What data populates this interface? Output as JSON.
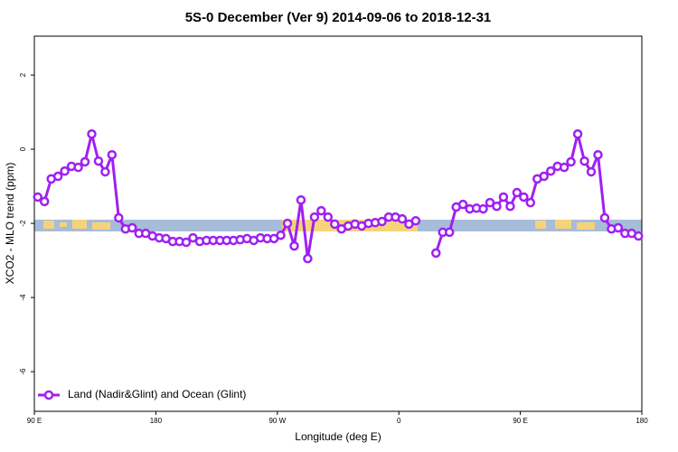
{
  "chart_data": {
    "type": "line",
    "title": "5S-0 December (Ver 9)   2014-09-06 to 2018-12-31",
    "x_label": "Longitude (deg E)",
    "y_label": "XCO2 - MLO trend (ppm)",
    "xlim": [
      90,
      540
    ],
    "ylim": [
      -7.07,
      3.05
    ],
    "xticks": [
      {
        "value": 90,
        "label": "90 E"
      },
      {
        "value": 180,
        "label": "180"
      },
      {
        "value": 270,
        "label": "90 W"
      },
      {
        "value": 360,
        "label": "0"
      },
      {
        "value": 450,
        "label": "90 E"
      },
      {
        "value": 540,
        "label": "180"
      }
    ],
    "yticks": [
      2,
      0,
      -2,
      -4,
      -6
    ],
    "legend": "bottom-left",
    "x": [
      92.5,
      97.5,
      102.5,
      107.5,
      112.5,
      117.5,
      122.5,
      127.5,
      132.5,
      137.5,
      142.5,
      147.5,
      152.5,
      157.5,
      162.5,
      167.5,
      172.5,
      177.5,
      182.5,
      187.5,
      192.5,
      197.5,
      202.5,
      207.5,
      212.5,
      217.5,
      222.5,
      227.5,
      232.5,
      237.5,
      242.5,
      247.5,
      252.5,
      257.5,
      262.5,
      267.5,
      272.5,
      277.5,
      282.5,
      287.5,
      292.5,
      297.5,
      302.5,
      307.5,
      312.5,
      317.5,
      322.5,
      327.5,
      332.5,
      337.5,
      342.5,
      347.5,
      352.5,
      357.5,
      362.5,
      367.5,
      372.5,
      377.5,
      382.5,
      387.5,
      392.5,
      397.5,
      402.5,
      407.5,
      412.5,
      417.5,
      422.5,
      427.5,
      432.5,
      437.5,
      442.5,
      447.5,
      452.5,
      457.5,
      462.5,
      467.5,
      472.5,
      477.5,
      482.5,
      487.5,
      492.5,
      497.5,
      502.5,
      507.5,
      512.5,
      517.5,
      522.5,
      527.5,
      532.5,
      537.5
    ],
    "series": [
      {
        "name": "Land (Nadir&Glint) and Ocean (Glint)",
        "color": "#a020f0",
        "values": [
          -1.29,
          -1.41,
          -0.8,
          -0.73,
          -0.59,
          -0.46,
          -0.49,
          -0.34,
          0.41,
          -0.32,
          -0.61,
          -0.15,
          -1.85,
          -2.15,
          -2.12,
          -2.27,
          -2.27,
          -2.34,
          -2.39,
          -2.41,
          -2.49,
          -2.49,
          -2.51,
          -2.39,
          -2.49,
          -2.46,
          -2.46,
          -2.46,
          -2.46,
          -2.46,
          -2.44,
          -2.41,
          -2.46,
          -2.39,
          -2.41,
          -2.41,
          -2.32,
          -2.0,
          -2.61,
          -1.37,
          -2.95,
          -1.83,
          -1.66,
          -1.83,
          -2.02,
          -2.15,
          -2.07,
          -2.02,
          -2.07,
          -2.0,
          -1.98,
          -1.95,
          -1.83,
          -1.83,
          -1.88,
          -2.02,
          -1.93,
          null,
          null,
          -2.8,
          -2.24,
          -2.24,
          -1.56,
          -1.49,
          -1.61,
          -1.59,
          -1.61,
          -1.44,
          -1.54,
          -1.29,
          -1.54,
          -1.17,
          -1.29,
          -1.44,
          -0.8,
          -0.73,
          -0.59,
          -0.46,
          -0.49,
          -0.34,
          0.41,
          -0.32,
          -0.61,
          -0.15,
          -1.85,
          -2.15,
          -2.12,
          -2.27,
          -2.27,
          -2.34
        ]
      }
    ]
  }
}
